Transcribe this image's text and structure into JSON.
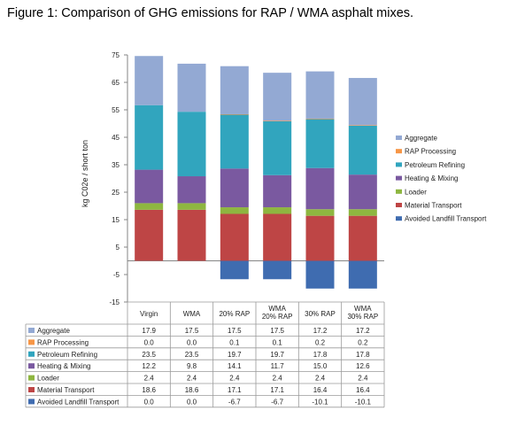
{
  "figure_title": "Figure 1:  Comparison of GHG emissions for RAP / WMA asphalt mixes.",
  "chart_data": {
    "type": "bar",
    "stacked": true,
    "title": "",
    "xlabel": "",
    "ylabel": "kg C02e / short ton",
    "ylim": [
      -15,
      75
    ],
    "yticks": [
      -15,
      -5,
      5,
      15,
      25,
      35,
      45,
      55,
      65,
      75
    ],
    "grid": false,
    "legend_position": "right",
    "categories": [
      "Virgin",
      "WMA",
      "20% RAP",
      "WMA 20% RAP",
      "30% RAP",
      "WMA 30% RAP"
    ],
    "series": [
      {
        "name": "Aggregate",
        "color": "#93A9D3",
        "values": [
          17.9,
          17.5,
          17.5,
          17.5,
          17.2,
          17.2
        ]
      },
      {
        "name": "RAP Processing",
        "color": "#F79646",
        "values": [
          0.0,
          0.0,
          0.1,
          0.1,
          0.2,
          0.2
        ]
      },
      {
        "name": "Petroleum Refining",
        "color": "#31A5BE",
        "values": [
          23.5,
          23.5,
          19.7,
          19.7,
          17.8,
          17.8
        ]
      },
      {
        "name": "Heating & Mixing",
        "color": "#7A59A0",
        "values": [
          12.2,
          9.8,
          14.1,
          11.7,
          15.0,
          12.6
        ]
      },
      {
        "name": "Loader",
        "color": "#8EB640",
        "values": [
          2.4,
          2.4,
          2.4,
          2.4,
          2.4,
          2.4
        ]
      },
      {
        "name": "Material Transport",
        "color": "#BE4545",
        "values": [
          18.6,
          18.6,
          17.1,
          17.1,
          16.4,
          16.4
        ]
      },
      {
        "name": "Avoided Landfill Transport",
        "color": "#3F6CB0",
        "values": [
          0.0,
          0.0,
          -6.7,
          -6.7,
          -10.1,
          -10.1
        ]
      }
    ],
    "table": {
      "show_data_table": true,
      "category_header_lines": [
        [
          "Virgin"
        ],
        [
          "WMA"
        ],
        [
          "20% RAP"
        ],
        [
          "WMA",
          "20% RAP"
        ],
        [
          "30% RAP"
        ],
        [
          "WMA",
          "30% RAP"
        ]
      ],
      "formatted_values": [
        [
          "17.9",
          "17.5",
          "17.5",
          "17.5",
          "17.2",
          "17.2"
        ],
        [
          "0.0",
          "0.0",
          "0.1",
          "0.1",
          "0.2",
          "0.2"
        ],
        [
          "23.5",
          "23.5",
          "19.7",
          "19.7",
          "17.8",
          "17.8"
        ],
        [
          "12.2",
          "9.8",
          "14.1",
          "11.7",
          "15.0",
          "12.6"
        ],
        [
          "2.4",
          "2.4",
          "2.4",
          "2.4",
          "2.4",
          "2.4"
        ],
        [
          "18.6",
          "18.6",
          "17.1",
          "17.1",
          "16.4",
          "16.4"
        ],
        [
          "0.0",
          "0.0",
          "-6.7",
          "-6.7",
          "-10.1",
          "-10.1"
        ]
      ]
    },
    "legend_order": [
      "Aggregate",
      "RAP Processing",
      "Petroleum Refining",
      "Heating & Mixing",
      "Loader",
      "Material Transport",
      "Avoided Landfill Transport"
    ]
  }
}
